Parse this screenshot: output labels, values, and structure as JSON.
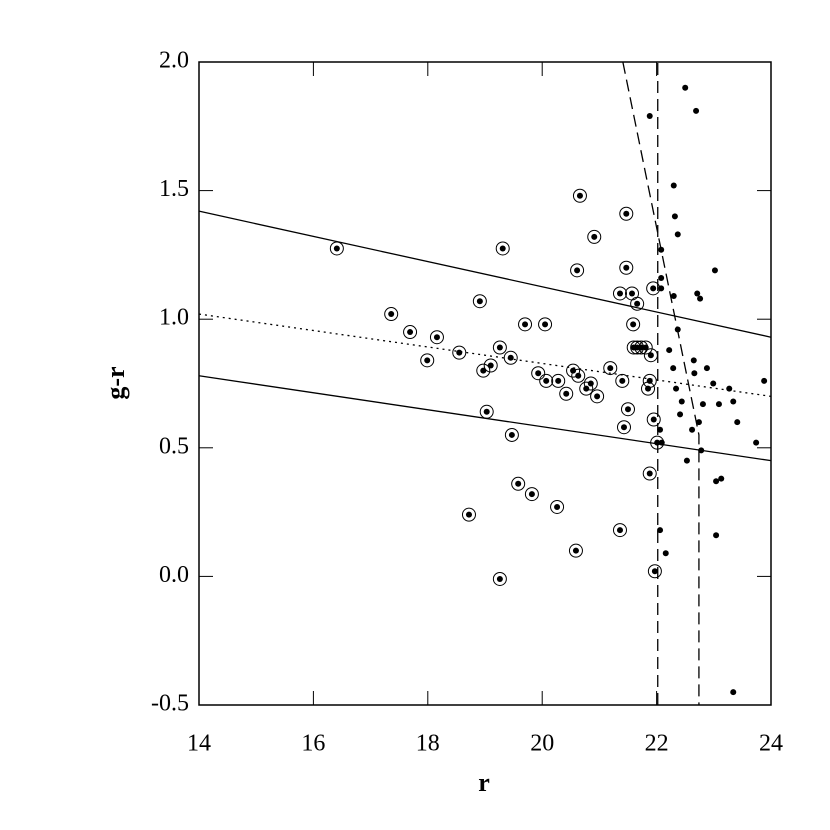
{
  "chart_data": {
    "type": "scatter",
    "xlabel": "r",
    "ylabel": "g-r",
    "xlim": [
      14,
      24
    ],
    "ylim": [
      -0.5,
      2.0
    ],
    "xticks": [
      14,
      16,
      18,
      20,
      22,
      24
    ],
    "yticks": [
      {
        "value": -0.5,
        "label": "-0.5"
      },
      {
        "value": 0,
        "label": "0.0"
      },
      0.5,
      {
        "value": 1,
        "label": "1.0"
      },
      1.5,
      {
        "value": 2,
        "label": "2.0"
      }
    ],
    "color": "#000000",
    "series": [
      {
        "marker": "circled",
        "x": [
          16.41,
          17.36,
          17.69,
          17.99,
          18.16,
          18.55,
          18.72,
          18.91,
          18.97,
          19.03,
          19.1,
          19.26,
          19.31,
          19.26,
          19.45,
          19.47,
          19.58,
          19.7,
          19.82,
          19.93,
          20.05,
          20.07,
          20.28,
          20.26,
          20.42,
          20.54,
          20.61,
          20.63,
          20.59,
          20.66,
          20.77,
          20.85,
          20.91,
          20.96,
          21.19,
          21.36,
          21.36,
          21.4,
          21.43,
          21.47,
          21.47,
          21.5,
          21.57,
          21.59,
          21.6,
          21.66,
          21.66,
          21.73,
          21.81,
          21.88,
          21.9,
          21.85,
          21.88,
          21.94,
          21.95,
          22.01,
          21.97
        ],
        "values": [
          1.275,
          1.02,
          0.95,
          0.84,
          0.93,
          0.87,
          0.24,
          1.07,
          0.8,
          0.64,
          0.82,
          0.89,
          1.275,
          -0.01,
          0.85,
          0.55,
          0.36,
          0.98,
          0.32,
          0.79,
          0.98,
          0.76,
          0.76,
          0.27,
          0.71,
          0.8,
          1.19,
          0.78,
          0.1,
          1.48,
          0.73,
          0.75,
          1.32,
          0.7,
          0.81,
          1.1,
          0.18,
          0.76,
          0.58,
          1.41,
          1.2,
          0.65,
          1.1,
          0.98,
          0.89,
          1.06,
          0.89,
          0.89,
          0.89,
          0.76,
          0.86,
          0.73,
          0.4,
          1.12,
          0.61,
          0.52,
          0.02
        ]
      },
      {
        "marker": "dot",
        "x": [
          22.5,
          21.88,
          22.69,
          22.3,
          22.32,
          22.37,
          22.08,
          22.08,
          22.08,
          22.71,
          22.76,
          23.02,
          22.3,
          22.37,
          22.22,
          22.29,
          22.65,
          22.88,
          22.66,
          22.34,
          22.44,
          22.41,
          22.99,
          23.27,
          23.34,
          23.88,
          22.81,
          23.09,
          22.62,
          22.74,
          23.41,
          22.06,
          22.09,
          23.74,
          22.78,
          22.53,
          23.04,
          23.13,
          22.06,
          22.16,
          23.04,
          23.34
        ],
        "values": [
          1.9,
          1.79,
          1.81,
          1.52,
          1.4,
          1.33,
          1.27,
          1.16,
          1.12,
          1.1,
          1.08,
          1.19,
          1.09,
          0.96,
          0.88,
          0.81,
          0.84,
          0.81,
          0.79,
          0.73,
          0.68,
          0.63,
          0.75,
          0.73,
          0.68,
          0.76,
          0.67,
          0.67,
          0.57,
          0.6,
          0.6,
          0.57,
          0.52,
          0.52,
          0.49,
          0.45,
          0.37,
          0.38,
          0.18,
          0.09,
          0.16,
          -0.45
        ]
      }
    ],
    "lines": [
      {
        "style": "solid",
        "x": [
          14,
          24
        ],
        "y": [
          1.42,
          0.93
        ]
      },
      {
        "style": "dotted",
        "x": [
          14,
          24
        ],
        "y": [
          1.02,
          0.7
        ]
      },
      {
        "style": "solid",
        "x": [
          14,
          24
        ],
        "y": [
          0.78,
          0.45
        ]
      },
      {
        "style": "dashed",
        "x": [
          22.02,
          22.02
        ],
        "y": [
          -0.5,
          2.0
        ]
      },
      {
        "style": "dashed",
        "x": [
          21.41,
          22.74,
          22.74
        ],
        "y": [
          2.0,
          0.55,
          -0.5
        ]
      }
    ]
  }
}
